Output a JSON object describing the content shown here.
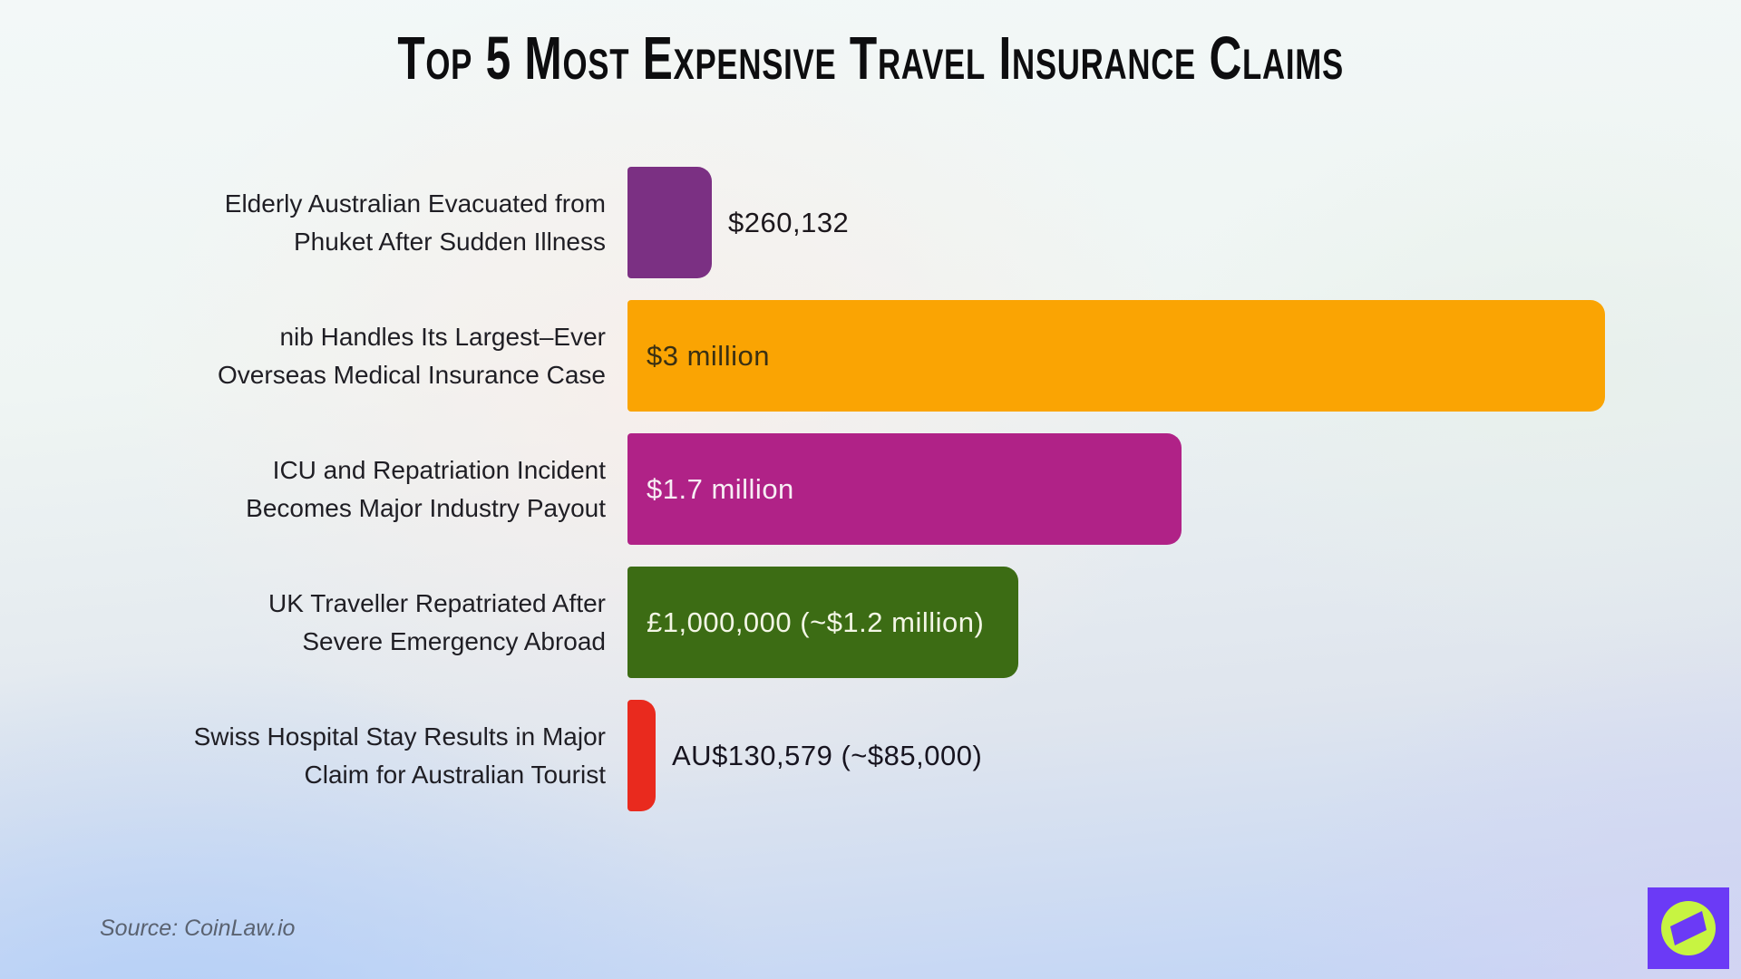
{
  "chart_data": {
    "type": "bar",
    "orientation": "horizontal",
    "title": "Top 5 Most Expensive Travel Insurance Claims",
    "xlabel": "",
    "ylabel": "",
    "max_value_usd": 3000000,
    "grid": false,
    "legend": false,
    "rows": [
      {
        "label_lines": [
          "Elderly Australian Evacuated from",
          "Phuket After Sudden Illness"
        ],
        "value_label": "$260,132",
        "value_usd": 260132,
        "color": "#7b3083",
        "value_placement": "outside",
        "value_color": "#1c171c"
      },
      {
        "label_lines": [
          "nib Handles Its Largest–Ever",
          "Overseas Medical Insurance Case"
        ],
        "value_label": "$3 million",
        "value_usd": 3000000,
        "color": "#faa403",
        "value_placement": "inside",
        "value_color": "#3a3013"
      },
      {
        "label_lines": [
          "ICU and Repatriation Incident",
          "Becomes Major Industry Payout"
        ],
        "value_label": "$1.7 million",
        "value_usd": 1700000,
        "color": "#b02287",
        "value_placement": "inside",
        "value_color": "#f7eef4"
      },
      {
        "label_lines": [
          "UK Traveller Repatriated After",
          "Severe Emergency Abroad"
        ],
        "value_label": "£1,000,000 (~$1.2 million)",
        "value_usd": 1200000,
        "color": "#3c6c14",
        "value_placement": "inside",
        "value_color": "#f3f6e6"
      },
      {
        "label_lines": [
          "Swiss Hospital Stay Results in Major",
          "Claim for Australian Tourist"
        ],
        "value_label": "AU$130,579 (~$85,000)",
        "value_usd": 85000,
        "color": "#e92a1e",
        "value_placement": "outside",
        "value_color": "#17141f"
      }
    ]
  },
  "source": {
    "text": "Source: CoinLaw.io"
  },
  "logo": {
    "name": "coinlaw-compass-logo",
    "background": "#6b3af6",
    "circle": "#c7f441",
    "needle": "#6b3af6"
  }
}
